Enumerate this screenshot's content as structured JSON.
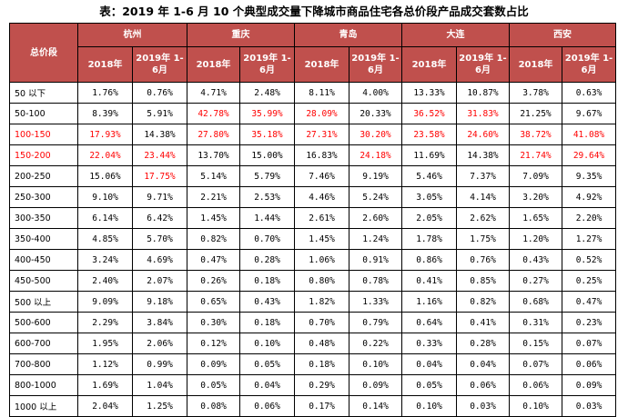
{
  "title": "表：2019 年 1-6 月 10 个典型成交量下降城市商品住宅各总价段产品成交套数占比",
  "header": {
    "segment_label": "总价段",
    "cities": [
      "杭州",
      "重庆",
      "青岛",
      "大连",
      "西安"
    ],
    "col_2018": "2018年",
    "col_2019": "2019年 1-6月"
  },
  "colors": {
    "header_bg": "#c0504d",
    "highlight": "#ff0000"
  },
  "rows": [
    {
      "label": "50 以下",
      "values": [
        "1.76%",
        "0.76%",
        "4.71%",
        "2.48%",
        "8.11%",
        "4.00%",
        "13.33%",
        "10.87%",
        "3.78%",
        "0.63%"
      ],
      "red": [],
      "label_red": false
    },
    {
      "label": "50-100",
      "values": [
        "8.39%",
        "5.91%",
        "42.78%",
        "35.99%",
        "28.09%",
        "20.33%",
        "36.52%",
        "31.83%",
        "21.25%",
        "9.67%"
      ],
      "red": [
        2,
        3,
        4,
        6,
        7
      ],
      "label_red": false
    },
    {
      "label": "100-150",
      "values": [
        "17.93%",
        "14.38%",
        "27.80%",
        "35.18%",
        "27.31%",
        "30.20%",
        "23.58%",
        "24.60%",
        "38.72%",
        "41.08%"
      ],
      "red": [
        0,
        2,
        3,
        4,
        5,
        6,
        7,
        8,
        9
      ],
      "label_red": true
    },
    {
      "label": "150-200",
      "values": [
        "22.04%",
        "23.44%",
        "13.70%",
        "15.00%",
        "16.83%",
        "24.18%",
        "11.69%",
        "14.38%",
        "21.74%",
        "29.64%"
      ],
      "red": [
        0,
        1,
        5,
        8,
        9
      ],
      "label_red": true
    },
    {
      "label": "200-250",
      "values": [
        "15.06%",
        "17.75%",
        "5.14%",
        "5.79%",
        "7.46%",
        "9.19%",
        "5.46%",
        "7.37%",
        "7.09%",
        "9.35%"
      ],
      "red": [
        1
      ],
      "label_red": false
    },
    {
      "label": "250-300",
      "values": [
        "9.10%",
        "9.71%",
        "2.21%",
        "2.53%",
        "4.46%",
        "5.24%",
        "3.05%",
        "4.14%",
        "3.20%",
        "4.92%"
      ],
      "red": [],
      "label_red": false
    },
    {
      "label": "300-350",
      "values": [
        "6.14%",
        "6.42%",
        "1.45%",
        "1.44%",
        "2.61%",
        "2.60%",
        "2.05%",
        "2.62%",
        "1.65%",
        "2.20%"
      ],
      "red": [],
      "label_red": false
    },
    {
      "label": "350-400",
      "values": [
        "4.85%",
        "5.70%",
        "0.82%",
        "0.70%",
        "1.45%",
        "1.24%",
        "1.78%",
        "1.75%",
        "1.20%",
        "1.27%"
      ],
      "red": [],
      "label_red": false
    },
    {
      "label": "400-450",
      "values": [
        "3.24%",
        "4.69%",
        "0.47%",
        "0.28%",
        "1.06%",
        "0.91%",
        "0.86%",
        "0.76%",
        "0.43%",
        "0.52%"
      ],
      "red": [],
      "label_red": false
    },
    {
      "label": "450-500",
      "values": [
        "2.40%",
        "2.07%",
        "0.26%",
        "0.18%",
        "0.80%",
        "0.78%",
        "0.41%",
        "0.85%",
        "0.27%",
        "0.25%"
      ],
      "red": [],
      "label_red": false
    },
    {
      "label": "500 以上",
      "values": [
        "9.09%",
        "9.18%",
        "0.65%",
        "0.43%",
        "1.82%",
        "1.33%",
        "1.16%",
        "0.82%",
        "0.68%",
        "0.47%"
      ],
      "red": [],
      "label_red": false
    },
    {
      "label": "500-600",
      "values": [
        "2.29%",
        "3.84%",
        "0.30%",
        "0.18%",
        "0.70%",
        "0.79%",
        "0.64%",
        "0.41%",
        "0.31%",
        "0.23%"
      ],
      "red": [],
      "label_red": false
    },
    {
      "label": "600-700",
      "values": [
        "1.95%",
        "2.06%",
        "0.12%",
        "0.10%",
        "0.48%",
        "0.22%",
        "0.33%",
        "0.28%",
        "0.15%",
        "0.07%"
      ],
      "red": [],
      "label_red": false
    },
    {
      "label": "700-800",
      "values": [
        "1.12%",
        "0.99%",
        "0.09%",
        "0.05%",
        "0.18%",
        "0.10%",
        "0.04%",
        "0.04%",
        "0.07%",
        "0.06%"
      ],
      "red": [],
      "label_red": false
    },
    {
      "label": "800-1000",
      "values": [
        "1.69%",
        "1.04%",
        "0.05%",
        "0.04%",
        "0.29%",
        "0.09%",
        "0.05%",
        "0.06%",
        "0.06%",
        "0.09%"
      ],
      "red": [],
      "label_red": false
    },
    {
      "label": "1000 以上",
      "values": [
        "2.04%",
        "1.25%",
        "0.08%",
        "0.06%",
        "0.17%",
        "0.14%",
        "0.10%",
        "0.03%",
        "0.10%",
        "0.03%"
      ],
      "red": [],
      "label_red": false
    }
  ]
}
